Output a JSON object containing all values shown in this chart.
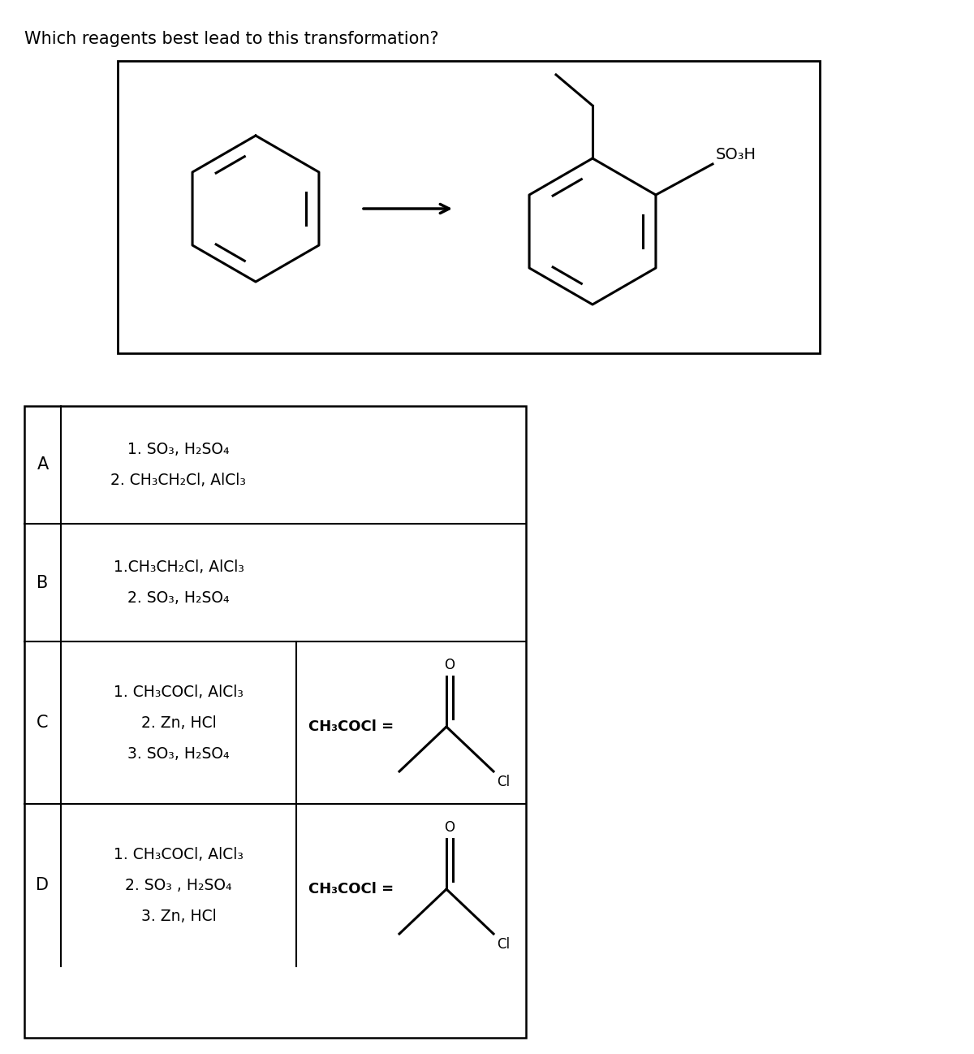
{
  "title": "Which reagents best lead to this transformation?",
  "title_fontsize": 15,
  "bg_color": "#ffffff",
  "rows": [
    {
      "label": "A",
      "col1_lines": [
        "1. SO₃, H₂SO₄",
        "2. CH₃CH₂Cl, AlCl₃"
      ],
      "has_col2": false
    },
    {
      "label": "B",
      "col1_lines": [
        "1.CH₃CH₂Cl, AlCl₃",
        "2. SO₃, H₂SO₄"
      ],
      "has_col2": false
    },
    {
      "label": "C",
      "col1_lines": [
        "1. CH₃COCl, AlCl₃",
        "2. Zn, HCl",
        "3. SO₃, H₂SO₄"
      ],
      "has_col2": true
    },
    {
      "label": "D",
      "col1_lines": [
        "1. CH₃COCl, AlCl₃",
        "2. SO₃ , H₂SO₄",
        "3. Zn, HCl"
      ],
      "has_col2": true
    }
  ]
}
